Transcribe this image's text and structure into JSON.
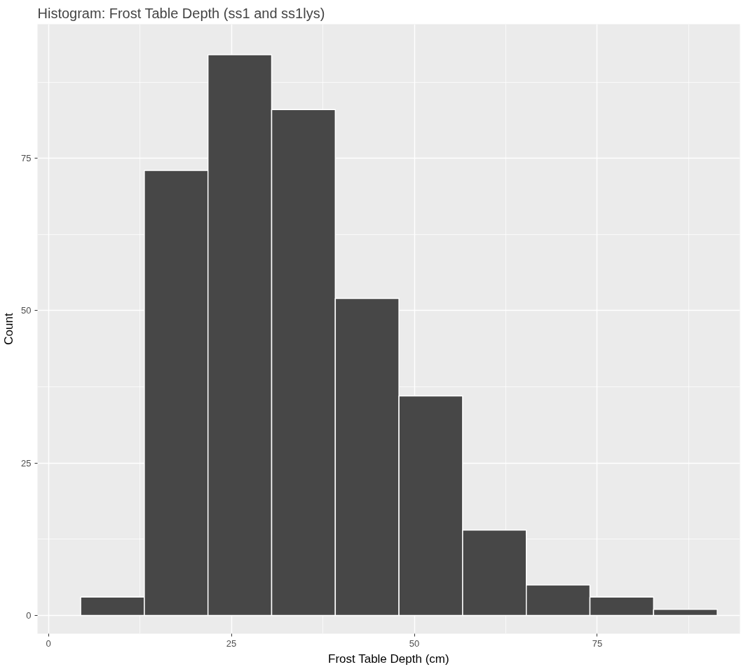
{
  "chart_data": {
    "type": "histogram",
    "title": "Histogram: Frost Table Depth (ss1 and ss1lys)",
    "xlabel": "Frost Table Depth (cm)",
    "ylabel": "Count",
    "bins": [
      4.4,
      13.1,
      21.8,
      30.5,
      39.2,
      47.9,
      56.6,
      65.3,
      74.0,
      82.7,
      91.4
    ],
    "values": [
      3,
      73,
      92,
      83,
      52,
      36,
      14,
      5,
      3,
      1
    ],
    "color": "#474747",
    "xlim": [
      -1.5,
      94.5
    ],
    "ylim": [
      -3,
      97
    ],
    "xticks": [
      0,
      25,
      50,
      75
    ],
    "yticks": [
      0,
      25,
      50,
      75
    ],
    "grid": true
  }
}
